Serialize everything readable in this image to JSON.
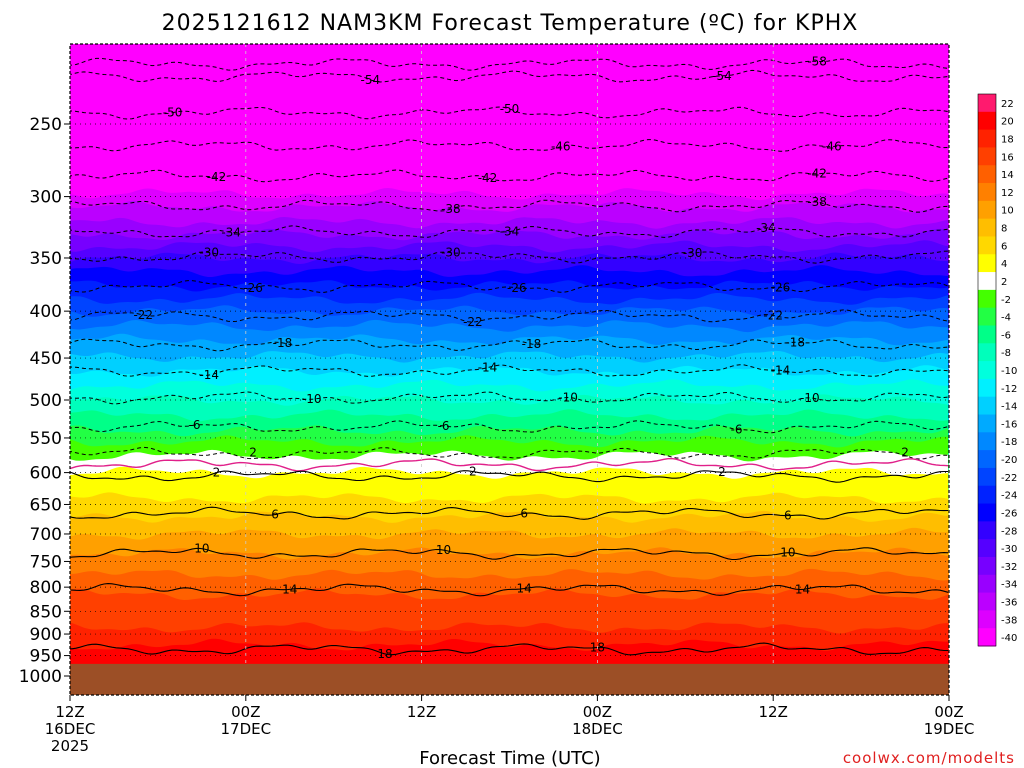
{
  "chart_data": {
    "type": "heatmap",
    "title": "2025121612 NAM3KM Forecast Temperature (ºC) for KPHX",
    "xlabel": "Forecast Time (UTC)",
    "credit": "coolwx.com/modelts",
    "x_ticks": [
      {
        "hour": 0,
        "line1": "12Z",
        "line2": "16DEC",
        "line3": "2025"
      },
      {
        "hour": 12,
        "line1": "00Z",
        "line2": "17DEC",
        "line3": ""
      },
      {
        "hour": 24,
        "line1": "12Z",
        "line2": "",
        "line3": ""
      },
      {
        "hour": 36,
        "line1": "00Z",
        "line2": "18DEC",
        "line3": ""
      },
      {
        "hour": 48,
        "line1": "12Z",
        "line2": "",
        "line3": ""
      },
      {
        "hour": 60,
        "line1": "00Z",
        "line2": "19DEC",
        "line3": ""
      }
    ],
    "x_range_hours": [
      0,
      60
    ],
    "y_ticks": [
      "250",
      "300",
      "350",
      "400",
      "450",
      "500",
      "550",
      "600",
      "650",
      "700",
      "750",
      "800",
      "850",
      "900",
      "950",
      "1000"
    ],
    "y_tick_values": [
      250,
      300,
      350,
      400,
      450,
      500,
      550,
      600,
      650,
      700,
      750,
      800,
      850,
      900,
      950,
      1000
    ],
    "ylim_hpa": [
      200,
      1040
    ],
    "ground_top_hpa": 970,
    "colorbar": {
      "labels": [
        "22",
        "20",
        "18",
        "16",
        "14",
        "12",
        "10",
        "8",
        "6",
        "4",
        "2",
        "-2",
        "-4",
        "-6",
        "-8",
        "-10",
        "-12",
        "-14",
        "-16",
        "-18",
        "-20",
        "-22",
        "-24",
        "-26",
        "-28",
        "-30",
        "-32",
        "-34",
        "-36",
        "-38",
        "-40"
      ],
      "colors": [
        "#ff1a6e",
        "#ff0000",
        "#ff2200",
        "#ff4000",
        "#ff6000",
        "#ff8000",
        "#ffa000",
        "#ffbe00",
        "#ffd800",
        "#ffff00",
        "#ffffff",
        "#44ff00",
        "#22ff44",
        "#00ff88",
        "#00ffbb",
        "#00ffdd",
        "#00f0ff",
        "#00d0ff",
        "#00aaff",
        "#0088ff",
        "#0066ff",
        "#0044ff",
        "#0022ff",
        "#0000ff",
        "#3300ff",
        "#5500ff",
        "#7700ff",
        "#9900ff",
        "#bb00ff",
        "#dd00ff",
        "#ff00ff"
      ]
    },
    "temperature_bands": [
      {
        "t": 20,
        "p_hpa": 955,
        "color": "#ff0000"
      },
      {
        "t": 18,
        "p_hpa": 925,
        "color": "#ff2200"
      },
      {
        "t": 16,
        "p_hpa": 885,
        "color": "#ff4000"
      },
      {
        "t": 14,
        "p_hpa": 815,
        "color": "#ff6000"
      },
      {
        "t": 12,
        "p_hpa": 775,
        "color": "#ff8000"
      },
      {
        "t": 10,
        "p_hpa": 735,
        "color": "#ffa000"
      },
      {
        "t": 8,
        "p_hpa": 700,
        "color": "#ffbe00"
      },
      {
        "t": 6,
        "p_hpa": 670,
        "color": "#ffd800"
      },
      {
        "t": 4,
        "p_hpa": 640,
        "color": "#ffff00"
      },
      {
        "t": 2,
        "p_hpa": 600,
        "color": "#ffffff"
      },
      {
        "t": -2,
        "p_hpa": 575,
        "color": "#44ff00"
      },
      {
        "t": -4,
        "p_hpa": 555,
        "color": "#22ff44"
      },
      {
        "t": -6,
        "p_hpa": 540,
        "color": "#00ff88"
      },
      {
        "t": -8,
        "p_hpa": 520,
        "color": "#00ffbb"
      },
      {
        "t": -10,
        "p_hpa": 500,
        "color": "#00ffdd"
      },
      {
        "t": -12,
        "p_hpa": 482,
        "color": "#00f0ff"
      },
      {
        "t": -14,
        "p_hpa": 465,
        "color": "#00d0ff"
      },
      {
        "t": -16,
        "p_hpa": 448,
        "color": "#00aaff"
      },
      {
        "t": -18,
        "p_hpa": 430,
        "color": "#0088ff"
      },
      {
        "t": -20,
        "p_hpa": 415,
        "color": "#0066ff"
      },
      {
        "t": -22,
        "p_hpa": 400,
        "color": "#0044ff"
      },
      {
        "t": -24,
        "p_hpa": 388,
        "color": "#0022ff"
      },
      {
        "t": -26,
        "p_hpa": 375,
        "color": "#0000ff"
      },
      {
        "t": -28,
        "p_hpa": 362,
        "color": "#3300ff"
      },
      {
        "t": -30,
        "p_hpa": 350,
        "color": "#5500ff"
      },
      {
        "t": -32,
        "p_hpa": 340,
        "color": "#7700ff"
      },
      {
        "t": -34,
        "p_hpa": 330,
        "color": "#9900ff"
      },
      {
        "t": -36,
        "p_hpa": 320,
        "color": "#bb00ff"
      },
      {
        "t": -38,
        "p_hpa": 308,
        "color": "#dd00ff"
      },
      {
        "t": -40,
        "p_hpa": 298,
        "color": "#ff00ff"
      }
    ],
    "contours_negative": [
      {
        "label": "-58",
        "p_hpa": 215,
        "label_hours": [
          51
        ]
      },
      {
        "label": "-54",
        "p_hpa": 222,
        "label_hours": [
          20.5,
          44.5
        ]
      },
      {
        "label": "-50",
        "p_hpa": 243,
        "label_hours": [
          7,
          30
        ]
      },
      {
        "label": "-46",
        "p_hpa": 264,
        "label_hours": [
          33.5,
          52
        ]
      },
      {
        "label": "-42",
        "p_hpa": 285,
        "label_hours": [
          10,
          28.5,
          51
        ]
      },
      {
        "label": "-38",
        "p_hpa": 307,
        "label_hours": [
          26,
          51
        ]
      },
      {
        "label": "-34",
        "p_hpa": 328,
        "label_hours": [
          11,
          30,
          47.5
        ]
      },
      {
        "label": "-30",
        "p_hpa": 349,
        "label_hours": [
          9.5,
          26,
          42.5
        ]
      },
      {
        "label": "-26",
        "p_hpa": 376,
        "label_hours": [
          12.5,
          30.5,
          48.5
        ]
      },
      {
        "label": "-22",
        "p_hpa": 405,
        "label_hours": [
          5,
          27.5,
          48
        ]
      },
      {
        "label": "-18",
        "p_hpa": 435,
        "label_hours": [
          14.5,
          31.5,
          49.5
        ]
      },
      {
        "label": "-14",
        "p_hpa": 465,
        "label_hours": [
          9.5,
          28.5,
          48.5
        ]
      },
      {
        "label": "-10",
        "p_hpa": 497,
        "label_hours": [
          16.5,
          34,
          50.5
        ]
      },
      {
        "label": "-6",
        "p_hpa": 535,
        "label_hours": [
          8.5,
          25.5,
          45.5
        ]
      },
      {
        "label": "-2",
        "p_hpa": 572,
        "label_hours": []
      }
    ],
    "contours_positive": [
      {
        "label": "2",
        "p_hpa": 605,
        "label_hours": [
          10,
          27.5,
          44.5
        ]
      },
      {
        "label": "6",
        "p_hpa": 665,
        "label_hours": [
          14,
          31,
          49
        ]
      },
      {
        "label": "10",
        "p_hpa": 735,
        "label_hours": [
          9,
          25.5,
          49
        ]
      },
      {
        "label": "14",
        "p_hpa": 805,
        "label_hours": [
          15,
          31,
          50
        ]
      },
      {
        "label": "18",
        "p_hpa": 935,
        "label_hours": [
          21.5,
          36
        ]
      }
    ],
    "freezing_line_p_hpa": 588,
    "freezing_labels": [
      "2",
      "2"
    ],
    "freezing_label_hours": [
      12.5,
      57
    ]
  }
}
